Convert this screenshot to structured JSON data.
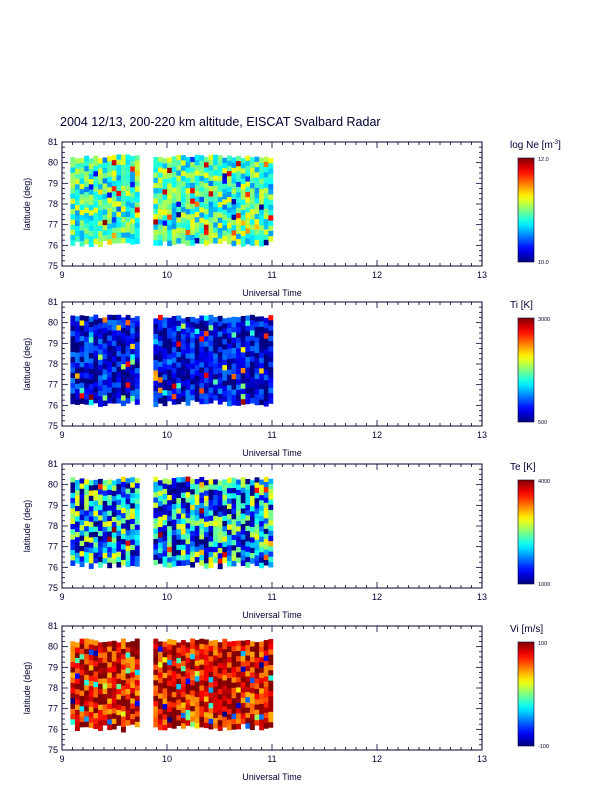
{
  "chart_data": {
    "type": "heatmap",
    "title": "2004 12/13, 200-220 km altitude, EISCAT Svalbard Radar",
    "shared_x": {
      "label": "Universal Time",
      "xlim": [
        9,
        13
      ],
      "ticks": [
        "9",
        "10",
        "11",
        "12",
        "13"
      ],
      "data_segments": [
        [
          9.08,
          9.72
        ],
        [
          9.87,
          10.97
        ]
      ]
    },
    "shared_y": {
      "label": "latitude (deg)",
      "ylim": [
        75,
        81
      ],
      "ticks": [
        "75",
        "76",
        "77",
        "78",
        "79",
        "80",
        "81"
      ],
      "data_range": [
        76.2,
        80.3
      ]
    },
    "panels": [
      {
        "name": "ne",
        "quantity": "log Ne",
        "colorbar_label": "log Ne [m",
        "colorbar_sup": "-3",
        "colorbar_suffix": "]",
        "range": [
          10.0,
          12.0
        ],
        "range_labels": [
          "10.0",
          "12.0"
        ],
        "dominant_color_level": 0.45,
        "spread": 0.18
      },
      {
        "name": "ti",
        "quantity": "Ti",
        "colorbar_label": "Ti [K]",
        "range": [
          500,
          3000
        ],
        "range_labels": [
          "500",
          "3000"
        ],
        "dominant_color_level": 0.1,
        "spread": 0.15
      },
      {
        "name": "te",
        "quantity": "Te",
        "colorbar_label": "Te [K]",
        "range": [
          1000,
          4000
        ],
        "range_labels": [
          "1000",
          "4000"
        ],
        "dominant_color_level": 0.3,
        "spread": 0.35
      },
      {
        "name": "vi",
        "quantity": "Vi",
        "colorbar_label": "Vi [m/s]",
        "range": [
          -100,
          100
        ],
        "range_labels": [
          "-100",
          "100"
        ],
        "dominant_color_level": 0.9,
        "spread": 0.2
      }
    ]
  }
}
